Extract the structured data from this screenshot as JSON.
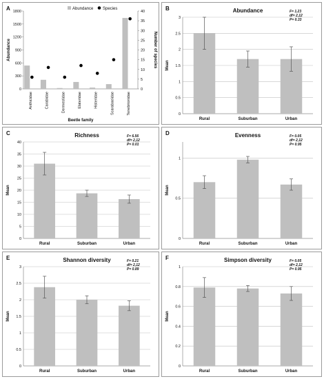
{
  "colors": {
    "bar": "#bfbfbf",
    "point": "#000000",
    "axis": "#8c8c8c",
    "error": "#555555"
  },
  "chart_data": [
    {
      "panel": "A",
      "type": "bar",
      "title": "",
      "legend": [
        "Abundance",
        "Species"
      ],
      "legend_position": "top",
      "categories": [
        "Anthicidae",
        "Carabidae",
        "Dermestidae",
        "Elateridae",
        "Histeridae",
        "Scarabaeidae",
        "Tenebrionidae"
      ],
      "series": [
        {
          "name": "Abundance",
          "kind": "bar",
          "axis": "left",
          "values": [
            540,
            210,
            20,
            160,
            30,
            110,
            1640
          ]
        },
        {
          "name": "Species",
          "kind": "scatter",
          "axis": "right",
          "values": [
            6,
            11,
            6,
            12,
            8,
            15,
            36
          ]
        }
      ],
      "xlabel": "Beetle family",
      "ylabel": "Abundance",
      "ylabel_right": "Number of species",
      "ylim": [
        0,
        1800
      ],
      "yticks": [
        "0",
        "300",
        "600",
        "900",
        "1200",
        "1500",
        "1800"
      ],
      "ylim_right": [
        0,
        40
      ],
      "yticks_right": [
        "0",
        "5",
        "10",
        "15",
        "20",
        "25",
        "30",
        "35",
        "40"
      ],
      "grid": false
    },
    {
      "panel": "B",
      "type": "bar",
      "title": "Abundance",
      "categories": [
        "Rural",
        "Suburban",
        "Urban"
      ],
      "values": [
        2.5,
        1.7,
        1.7
      ],
      "errors": [
        0.5,
        0.25,
        0.38
      ],
      "ylabel": "Mean",
      "ylim": [
        0,
        3
      ],
      "yticks": [
        "0",
        "0.5",
        "1",
        "1.5",
        "2",
        "2.5",
        "3"
      ],
      "stats": [
        "F= 1.23",
        "df= 2,12",
        "P= 0.33"
      ],
      "grid": true
    },
    {
      "panel": "C",
      "type": "bar",
      "title": "Richness",
      "categories": [
        "Rural",
        "Suburban",
        "Urban"
      ],
      "values": [
        31,
        18.7,
        16.3
      ],
      "errors": [
        4.7,
        1.3,
        1.7
      ],
      "ylabel": "Mean",
      "ylim": [
        0,
        40
      ],
      "yticks": [
        "0",
        "5",
        "10",
        "15",
        "20",
        "25",
        "30",
        "35",
        "40"
      ],
      "stats": [
        "F= 6.56",
        "df= 2,12",
        "P= 0.01"
      ],
      "grid": true
    },
    {
      "panel": "D",
      "type": "bar",
      "title": "Evenness",
      "categories": [
        "Rural",
        "Suburban",
        "Urban"
      ],
      "values": [
        0.7,
        0.98,
        0.67
      ],
      "errors": [
        0.08,
        0.04,
        0.07
      ],
      "ylabel": "Mean",
      "ylim": [
        0,
        1.2
      ],
      "yticks": [
        "0",
        "0.5",
        "1"
      ],
      "ytick_values": [
        0,
        0.5,
        1
      ],
      "stats": [
        "F= 0.05",
        "df= 2,12",
        "P= 0.95"
      ],
      "grid": true
    },
    {
      "panel": "E",
      "type": "bar",
      "title": "Shannon diversity",
      "categories": [
        "Rural",
        "Suburban",
        "Urban"
      ],
      "values": [
        2.38,
        2.0,
        1.82
      ],
      "errors": [
        0.33,
        0.12,
        0.15
      ],
      "ylabel": "Mean",
      "ylim": [
        0,
        3
      ],
      "yticks": [
        "0",
        "0.5",
        "1",
        "1.5",
        "2",
        "2.5",
        "3"
      ],
      "stats": [
        "F= 0.21",
        "df= 2,12",
        "P= 0.89"
      ],
      "grid": true
    },
    {
      "panel": "F",
      "type": "bar",
      "title": "Simpson diversity",
      "categories": [
        "Rural",
        "Suburban",
        "Urban"
      ],
      "values": [
        0.79,
        0.78,
        0.73
      ],
      "errors": [
        0.1,
        0.03,
        0.07
      ],
      "ylabel": "Mean",
      "ylim": [
        0,
        1
      ],
      "yticks": [
        "0",
        "0.2",
        "0.4",
        "0.6",
        "0.8",
        "1"
      ],
      "stats": [
        "F= 0.05",
        "df= 2,12",
        "P= 0.95"
      ],
      "grid": true
    }
  ]
}
